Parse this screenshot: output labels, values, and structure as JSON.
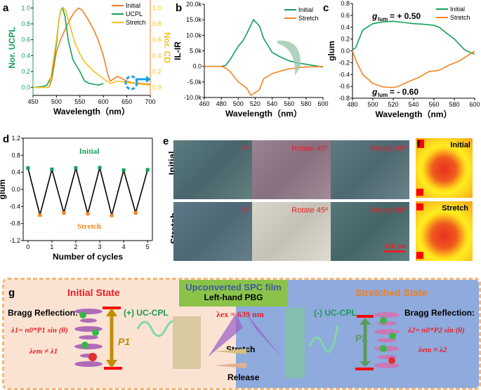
{
  "panel_labels": {
    "a": "a",
    "b": "b",
    "c": "c",
    "d": "d",
    "e": "e",
    "f": "f",
    "g": "g"
  },
  "colors": {
    "initial": "#f07f22",
    "ucpl": "#12a05a",
    "stretch_a": "#f6be1a",
    "green": "#1a9a55",
    "orange": "#f5841f",
    "red": "#e8202a",
    "peach": "#fbe3d3",
    "blue": "#8faadc",
    "filmgreen": "#8bc34a",
    "border": "#f3b77a"
  },
  "chart_data": [
    {
      "id": "a",
      "type": "line",
      "xlabel": "Wavelength（nm）",
      "ylabel": "Nor. UCPL",
      "ylabel_right": "Nor. CD",
      "xlim": [
        450,
        700
      ],
      "ylim": [
        -0.1,
        1.1
      ],
      "xticks": [
        450,
        500,
        550,
        600,
        650,
        700
      ],
      "yticks": [
        0.0,
        0.2,
        0.4,
        0.6,
        0.8,
        1.0
      ],
      "legend": "top-right",
      "grid": false,
      "series": [
        {
          "name": "Initial",
          "color": "#f07f22",
          "x": [
            450,
            480,
            485,
            490,
            500,
            510,
            520,
            530,
            540,
            547,
            555,
            570,
            580,
            590,
            600,
            610,
            615,
            620,
            630,
            640,
            650,
            660,
            680,
            700
          ],
          "y": [
            0,
            0,
            0.01,
            0.1,
            0.45,
            0.62,
            0.75,
            0.87,
            0.96,
            1.0,
            0.97,
            0.83,
            0.72,
            0.58,
            0.4,
            0.15,
            0.08,
            0.1,
            0.14,
            0.11,
            0.08,
            0.06,
            0.05,
            0.04
          ]
        },
        {
          "name": "UCPL",
          "color": "#12a05a",
          "x": [
            450,
            470,
            480,
            490,
            500,
            505,
            510,
            513,
            518,
            525,
            535,
            550,
            560,
            570,
            580,
            590,
            600
          ],
          "y": [
            0,
            0.01,
            0.03,
            0.15,
            0.55,
            0.85,
            0.98,
            1.0,
            0.9,
            0.6,
            0.35,
            0.2,
            0.08,
            0.05,
            0.04,
            0.03,
            0.05
          ]
        },
        {
          "name": "Stretch",
          "color": "#f6be1a",
          "x": [
            450,
            480,
            485,
            490,
            500,
            505,
            510,
            515,
            520,
            530,
            540,
            550,
            560,
            580,
            600,
            615,
            630,
            650,
            700
          ],
          "y": [
            0,
            0,
            0.02,
            0.2,
            0.6,
            0.85,
            0.97,
            1.0,
            0.96,
            0.75,
            0.55,
            0.42,
            0.32,
            0.2,
            0.11,
            0.05,
            0.08,
            0.06,
            0.03
          ]
        }
      ]
    },
    {
      "id": "b",
      "type": "line",
      "xlabel": "Wavelength（nm）",
      "ylabel": "IL-IR",
      "xlim": [
        460,
        600
      ],
      "ylim": [
        -10000,
        20000
      ],
      "xticks": [
        460,
        480,
        500,
        520,
        540,
        560,
        580,
        600
      ],
      "yticks": [
        -10000,
        -5000,
        0,
        5000,
        10000,
        15000,
        20000
      ],
      "ytick_labels": [
        "-10.0k",
        "-5.0k",
        "0.0",
        "5.0k",
        "10.0k",
        "15.0k",
        "20.0k"
      ],
      "legend": "top-right",
      "grid": false,
      "series": [
        {
          "name": "Initial",
          "color": "#12a05a",
          "x": [
            460,
            480,
            485,
            490,
            500,
            505,
            510,
            518,
            525,
            530,
            540,
            550,
            560,
            570,
            580,
            600
          ],
          "y": [
            0,
            0,
            300,
            2000,
            6500,
            8000,
            10500,
            15000,
            13000,
            9000,
            4500,
            3000,
            1800,
            1100,
            700,
            -200
          ]
        },
        {
          "name": "Stretch",
          "color": "#f5841f",
          "x": [
            460,
            480,
            485,
            490,
            500,
            505,
            510,
            515,
            525,
            530,
            540,
            550,
            560,
            570,
            580,
            600
          ],
          "y": [
            0,
            0,
            -500,
            -1500,
            -5000,
            -6000,
            -7000,
            -9300,
            -7500,
            -4000,
            -2300,
            -1500,
            -800,
            -400,
            -200,
            0
          ]
        }
      ]
    },
    {
      "id": "c",
      "type": "line",
      "xlabel": "Wavelength（nm）",
      "ylabel": "glum",
      "xlim": [
        480,
        600
      ],
      "ylim": [
        -0.8,
        0.8
      ],
      "xticks": [
        480,
        500,
        520,
        540,
        560,
        580,
        600
      ],
      "yticks": [
        -0.8,
        -0.6,
        -0.4,
        -0.2,
        0.0,
        0.2,
        0.4,
        0.6,
        0.8
      ],
      "legend": "top-right",
      "grid": false,
      "annotations": [
        "+ 0.50",
        "- 0.60"
      ],
      "series": [
        {
          "name": "Initial",
          "color": "#12a05a",
          "x": [
            480,
            483,
            490,
            500,
            510,
            520,
            530,
            540,
            550,
            560,
            565,
            570,
            580,
            590,
            597,
            600
          ],
          "y": [
            0.02,
            0.05,
            0.35,
            0.46,
            0.49,
            0.5,
            0.48,
            0.46,
            0.45,
            0.43,
            0.4,
            0.33,
            0.2,
            0.02,
            -0.04,
            -0.05
          ]
        },
        {
          "name": "Stretch",
          "color": "#f5841f",
          "x": [
            480,
            483,
            490,
            500,
            510,
            520,
            525,
            535,
            545,
            555,
            560,
            565,
            575,
            585,
            595,
            600
          ],
          "y": [
            0,
            -0.15,
            -0.4,
            -0.55,
            -0.61,
            -0.62,
            -0.6,
            -0.52,
            -0.45,
            -0.35,
            -0.34,
            -0.33,
            -0.24,
            -0.17,
            -0.06,
            0
          ]
        }
      ]
    },
    {
      "id": "d",
      "type": "line",
      "xlabel": "Number of cycles",
      "ylabel": "glum",
      "xlim": [
        -0.2,
        5.2
      ],
      "ylim": [
        -1.2,
        1.2
      ],
      "xticks": [
        0,
        1,
        2,
        3,
        4,
        5
      ],
      "yticks": [
        -1.2,
        -0.8,
        -0.4,
        0.0,
        0.4,
        0.8,
        1.2
      ],
      "grid": false,
      "annotations": [
        "Initial",
        "Stretch"
      ],
      "series": [
        {
          "color": "#000000",
          "x": [
            0,
            0.5,
            1,
            1.5,
            2,
            2.5,
            3,
            3.5,
            4,
            4.5,
            5
          ],
          "y": [
            0.5,
            -0.6,
            0.47,
            -0.55,
            0.5,
            -0.57,
            0.51,
            -0.61,
            0.45,
            -0.55,
            0.46
          ]
        }
      ]
    }
  ],
  "panel_e": {
    "rows": [
      "Initial",
      "Stretch"
    ],
    "labels": [
      "0º",
      "Rotate 45º",
      "Rotate 90º"
    ],
    "scale_bar": "100 μm"
  },
  "panel_f": {
    "labels": [
      "Initial",
      "Stretch"
    ]
  },
  "panel_g": {
    "initial_state": "Initial State",
    "stretched_state": "Stretched State",
    "film_title": "Upconverted SPC film",
    "film_sub": "Left-hand PBG",
    "bragg": "Bragg Reflection:",
    "eq1": "λ1= n0*P1 sin (θ)",
    "em1": "λem ≠ λ1",
    "eq2": "λ2= n0*P2 sin (θ)",
    "em2": "λem ≈ λ2",
    "p1": "P1",
    "p2": "P2",
    "plus": "(+) UC-CPL",
    "minus": "(-) UC-CPL",
    "lex": "λex = 639 nm",
    "stretch": "Stretch",
    "release": "Release"
  }
}
